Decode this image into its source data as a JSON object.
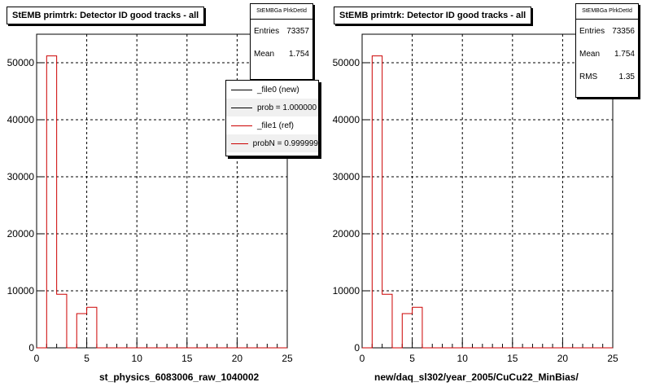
{
  "chart_data": [
    {
      "type": "bar",
      "title": "StEMB primtrk: Detector ID good tracks - all",
      "stats": {
        "name": "StEMBGa PlrkDetId",
        "rows": [
          {
            "label": "Entries",
            "value": "73357"
          },
          {
            "label": "Mean",
            "value": "1.754"
          }
        ]
      },
      "legend": [
        {
          "label": "_file0 (new)",
          "color": "#000000"
        },
        {
          "label": "prob = 1.000000",
          "color": "#000000"
        },
        {
          "label": "_file1 (ref)",
          "color": "#cc0000"
        },
        {
          "label": "probN = 0.999999",
          "color": "#cc0000"
        }
      ],
      "xlabel": "st_physics_6083006_raw_1040002",
      "xlim": [
        0,
        25
      ],
      "ylim": [
        0,
        55000
      ],
      "xticks": [
        0,
        5,
        10,
        15,
        20,
        25
      ],
      "yticks": [
        0,
        10000,
        20000,
        30000,
        40000,
        50000
      ],
      "bin_width": 1,
      "bin_start": 0,
      "values": [
        0,
        51200,
        9400,
        0,
        6000,
        7100,
        0,
        0,
        0,
        0,
        0,
        0,
        0,
        0,
        0,
        0,
        0,
        0,
        0,
        0,
        0,
        0,
        0,
        0,
        0
      ],
      "line_color": "#cc0000",
      "grid": true
    },
    {
      "type": "bar",
      "title": "StEMB primtrk: Detector ID good tracks - all",
      "stats": {
        "name": "StEMBGa PlrkDetId",
        "rows": [
          {
            "label": "Entries",
            "value": "73356"
          },
          {
            "label": "Mean",
            "value": "1.754"
          },
          {
            "label": "RMS",
            "value": "1.35"
          }
        ]
      },
      "xlabel": "new/daq_sl302/year_2005/CuCu22_MinBias/",
      "xlim": [
        0,
        25
      ],
      "ylim": [
        0,
        55000
      ],
      "xticks": [
        0,
        5,
        10,
        15,
        20,
        25
      ],
      "yticks": [
        0,
        10000,
        20000,
        30000,
        40000,
        50000
      ],
      "bin_width": 1,
      "bin_start": 0,
      "values": [
        0,
        51200,
        9400,
        0,
        6000,
        7100,
        0,
        0,
        0,
        0,
        0,
        0,
        0,
        0,
        0,
        0,
        0,
        0,
        0,
        0,
        0,
        0,
        0,
        0,
        0
      ],
      "line_color": "#cc0000",
      "grid": true
    }
  ]
}
